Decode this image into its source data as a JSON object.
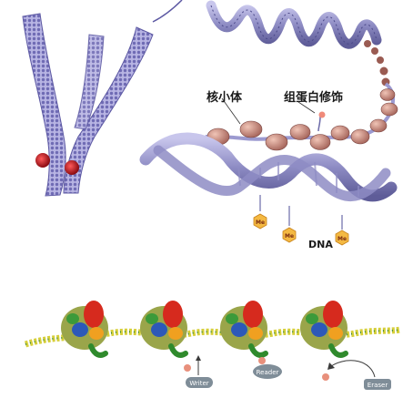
{
  "labels": {
    "nucleosome": "核小体",
    "histone_modification": "组蛋白修饰",
    "dna": "DNA"
  },
  "methyl_marks": [
    "Me",
    "Me",
    "Me"
  ],
  "enzymes": {
    "writer": "Writer",
    "reader": "Reader",
    "eraser": "Eraser"
  },
  "colors": {
    "chromosome": "#8a86c9",
    "centromere": "#c0202a",
    "fiber": "#8e8cc4",
    "nucleosome": "#c98d7e",
    "dna_strand": "#9c9ad0",
    "methyl_tag": "#f4b942",
    "enzyme_pill": "#7f8d98",
    "mark_dot": "#e8907c"
  }
}
